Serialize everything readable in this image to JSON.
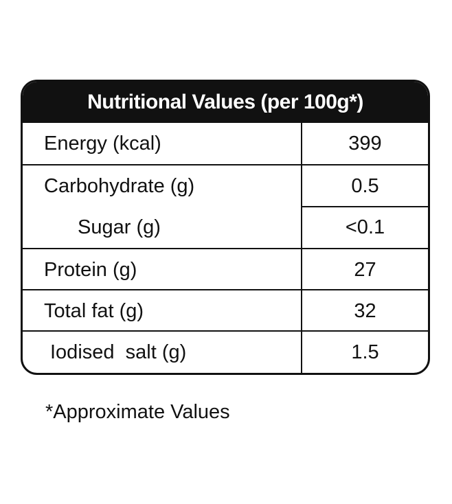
{
  "table": {
    "title": "Nutritional Values (per 100g*)",
    "rows": [
      {
        "label": "Energy (kcal)",
        "value": "399"
      },
      {
        "label": "Carbohydrate (g)",
        "value": "0.5"
      },
      {
        "label": "Sugar (g)",
        "value": "<0.1"
      },
      {
        "label": "Protein (g)",
        "value": "27"
      },
      {
        "label": "Total fat (g)",
        "value": "32"
      },
      {
        "label": "Iodised  salt (g)",
        "value": "1.5"
      }
    ]
  },
  "footnote": "*Approximate Values"
}
